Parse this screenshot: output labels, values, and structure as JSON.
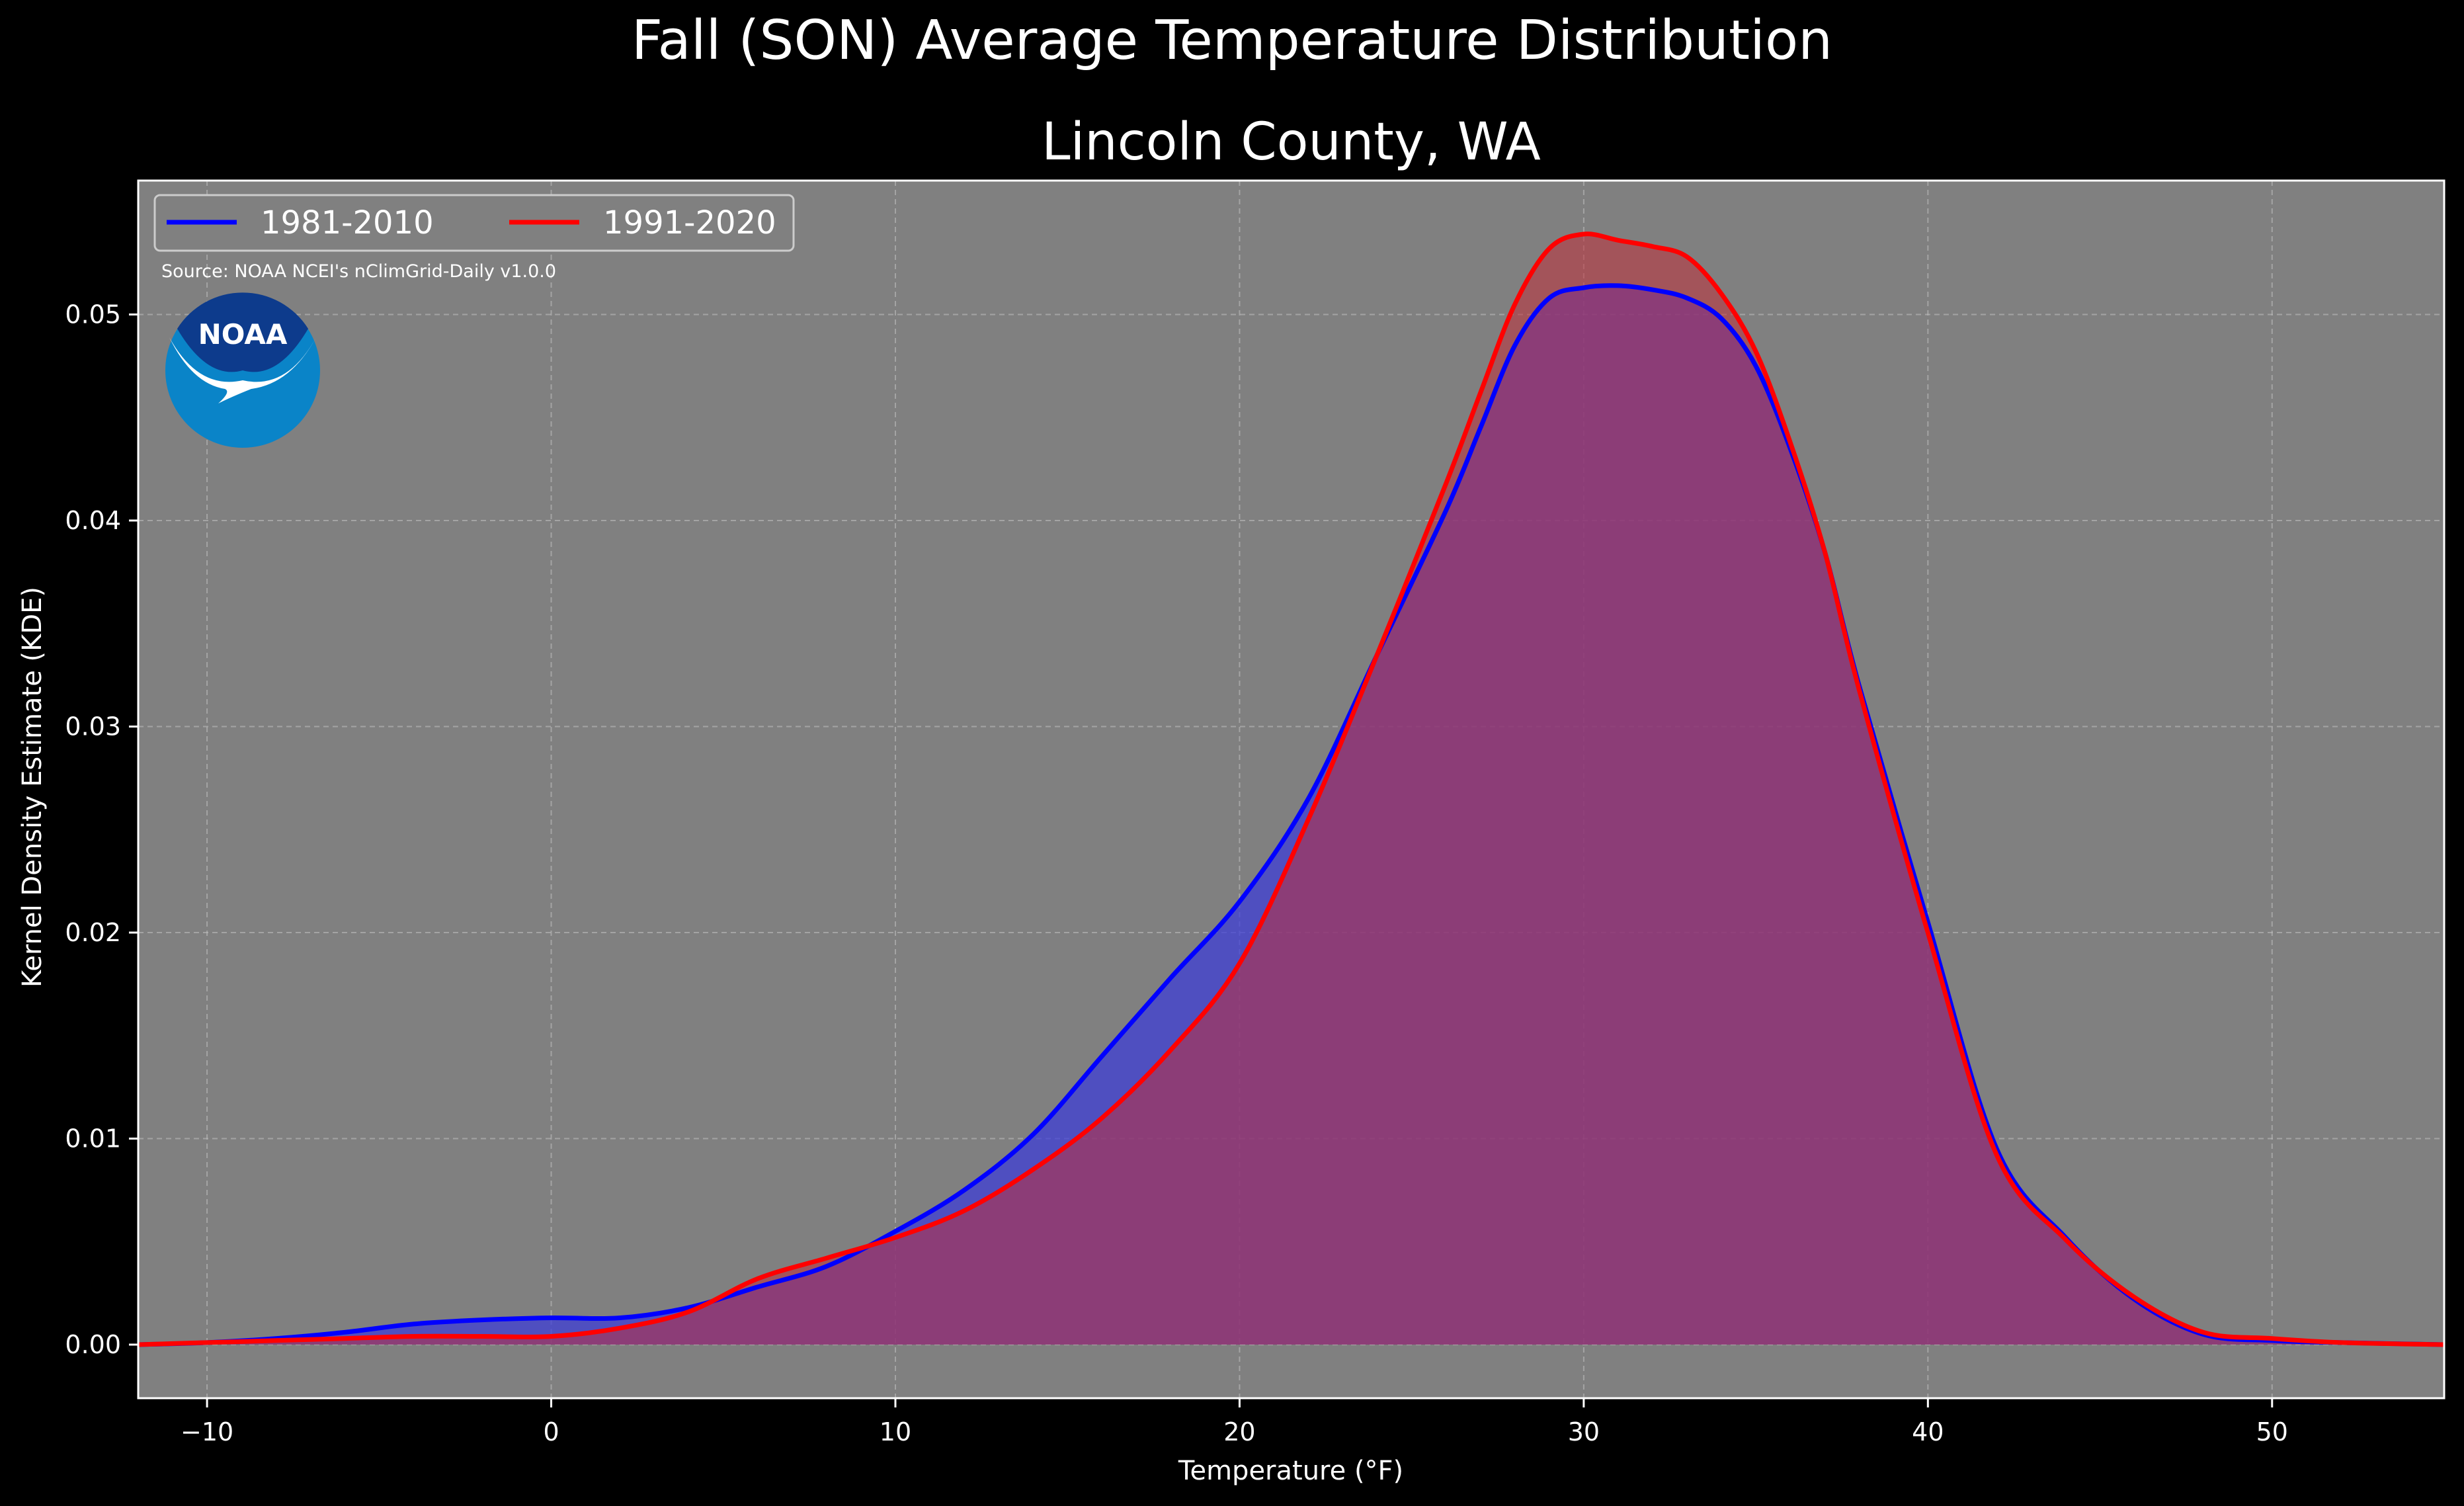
{
  "chart_data": {
    "type": "area",
    "title": "Fall (SON) Average Temperature Distribution",
    "subtitle": "Lincoln County, WA",
    "xlabel": "Temperature (°F)",
    "ylabel": "Kernel Density Estimate (KDE)",
    "source": "Source: NOAA NCEI's nClimGrid-Daily v1.0.0",
    "logo_text": "NOAA",
    "xlim": [
      -12,
      55
    ],
    "ylim": [
      -0.0026,
      0.0565
    ],
    "x_ticks": [
      -10,
      0,
      10,
      20,
      30,
      40,
      50
    ],
    "x_tick_labels": [
      "−10",
      "0",
      "10",
      "20",
      "30",
      "40",
      "50"
    ],
    "y_ticks": [
      0.0,
      0.01,
      0.02,
      0.03,
      0.04,
      0.05
    ],
    "y_tick_labels": [
      "0.00",
      "0.01",
      "0.02",
      "0.03",
      "0.04",
      "0.05"
    ],
    "grid": true,
    "legend_position": "top-left",
    "background_color": "#808080",
    "series": [
      {
        "name": "1981-2010",
        "color": "#0000ff",
        "fill": "#3b3bd8",
        "x": [
          -12,
          -10,
          -8,
          -6,
          -4,
          -2,
          0,
          2,
          4,
          6,
          8,
          10,
          12,
          14,
          16,
          18,
          20,
          22,
          24,
          26,
          27,
          28,
          29,
          30,
          31,
          32,
          33,
          34,
          35,
          36,
          37,
          38,
          40,
          42,
          44,
          46,
          48,
          50,
          52,
          55
        ],
        "values": [
          0.0,
          0.0001,
          0.0003,
          0.0006,
          0.001,
          0.0012,
          0.0013,
          0.0013,
          0.0018,
          0.0028,
          0.0038,
          0.0055,
          0.0075,
          0.0102,
          0.014,
          0.0178,
          0.0215,
          0.0265,
          0.0335,
          0.0405,
          0.0445,
          0.0485,
          0.0508,
          0.0513,
          0.0514,
          0.0512,
          0.0508,
          0.0498,
          0.0475,
          0.0435,
          0.0385,
          0.032,
          0.0205,
          0.0095,
          0.0052,
          0.0022,
          0.0005,
          0.0002,
          0.0001,
          0.0
        ]
      },
      {
        "name": "1991-2020",
        "color": "#ff0000",
        "fill": "#c0303a",
        "x": [
          -12,
          -10,
          -8,
          -6,
          -4,
          -2,
          0,
          2,
          4,
          6,
          8,
          10,
          12,
          14,
          16,
          18,
          20,
          22,
          24,
          26,
          27,
          28,
          29,
          30,
          31,
          32,
          33,
          34,
          35,
          36,
          37,
          38,
          40,
          42,
          44,
          46,
          48,
          50,
          52,
          55
        ],
        "values": [
          0.0,
          0.0001,
          0.0002,
          0.0003,
          0.0004,
          0.0004,
          0.0004,
          0.0008,
          0.0016,
          0.0032,
          0.0042,
          0.0052,
          0.0065,
          0.0085,
          0.011,
          0.0143,
          0.0185,
          0.0255,
          0.0335,
          0.0418,
          0.0462,
          0.0505,
          0.0532,
          0.0539,
          0.0536,
          0.0533,
          0.0528,
          0.051,
          0.0482,
          0.0438,
          0.0385,
          0.0318,
          0.02,
          0.0092,
          0.0051,
          0.0023,
          0.0006,
          0.0003,
          0.0001,
          0.0
        ]
      }
    ]
  }
}
